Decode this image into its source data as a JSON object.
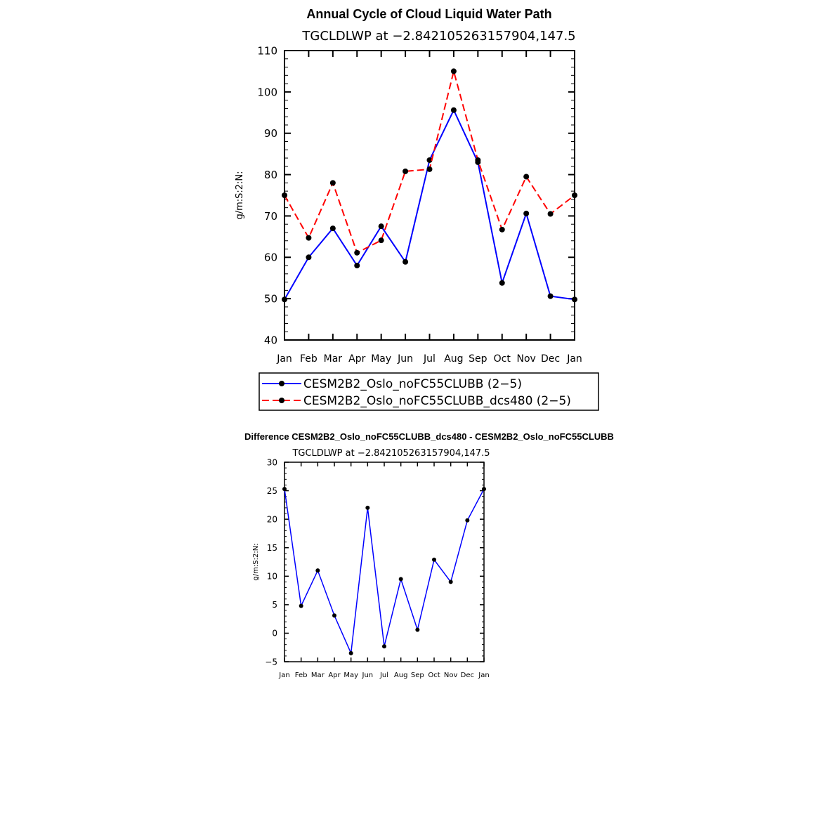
{
  "chart_data": [
    {
      "type": "line",
      "title": "Annual Cycle of Cloud Liquid Water Path",
      "subtitle": "TGCLDLWP at −2.842105263157904,147.5",
      "ylabel": "g/m:S:2:N:",
      "xlabel": "",
      "ylim": [
        40,
        110
      ],
      "yticks": [
        "40",
        "50",
        "60",
        "70",
        "80",
        "90",
        "100",
        "110"
      ],
      "categories": [
        "Jan",
        "Feb",
        "Mar",
        "Apr",
        "May",
        "Jun",
        "Jul",
        "Aug",
        "Sep",
        "Oct",
        "Nov",
        "Dec",
        "Jan"
      ],
      "grid": false,
      "legend_position": "bottom",
      "series": [
        {
          "name": "CESM2B2_Oslo_noFC55CLUBB (2−5)",
          "color": "#0000ff",
          "style": "solid",
          "values": [
            49.8,
            60.0,
            67.0,
            58.0,
            67.5,
            58.9,
            83.5,
            95.6,
            83.0,
            53.8,
            70.6,
            50.6,
            49.8
          ]
        },
        {
          "name": "CESM2B2_Oslo_noFC55CLUBB_dcs480 (2−5)",
          "color": "#ff0000",
          "style": "dashed",
          "values": [
            75.0,
            64.7,
            78.0,
            61.1,
            64.1,
            80.8,
            81.3,
            105.0,
            83.5,
            66.7,
            79.5,
            70.5,
            75.0
          ]
        }
      ]
    },
    {
      "type": "line",
      "title": "Difference CESM2B2_Oslo_noFC55CLUBB_dcs480 - CESM2B2_Oslo_noFC55CLUBB",
      "subtitle": "TGCLDLWP at −2.842105263157904,147.5",
      "ylabel": "g/m:S:2:N:",
      "xlabel": "",
      "ylim": [
        -5,
        30
      ],
      "yticks": [
        "−5",
        "0",
        "5",
        "10",
        "15",
        "20",
        "25",
        "30"
      ],
      "categories": [
        "Jan",
        "Feb",
        "Mar",
        "Apr",
        "May",
        "Jun",
        "Jul",
        "Aug",
        "Sep",
        "Oct",
        "Nov",
        "Dec",
        "Jan"
      ],
      "grid": false,
      "series": [
        {
          "color": "#0000ff",
          "style": "solid",
          "values": [
            25.3,
            4.8,
            11.0,
            3.1,
            -3.5,
            22.0,
            -2.3,
            9.5,
            0.6,
            12.9,
            9.0,
            19.8,
            25.3
          ]
        }
      ]
    }
  ]
}
